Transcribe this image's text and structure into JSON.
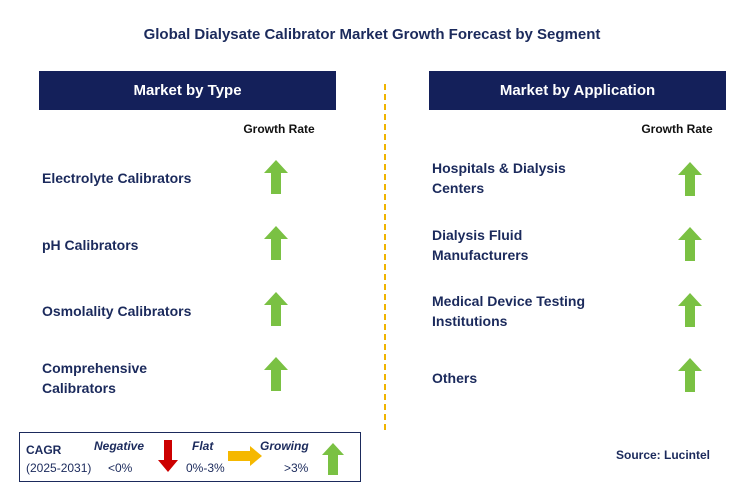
{
  "title": "Global Dialysate Calibrator Market Growth Forecast by Segment",
  "left_panel": {
    "header": "Market by Type",
    "growth_label": "Growth Rate",
    "items": [
      {
        "label": "Electrolyte Calibrators",
        "trend": "growing"
      },
      {
        "label": "pH Calibrators",
        "trend": "growing"
      },
      {
        "label": "Osmolality Calibrators",
        "trend": "growing"
      },
      {
        "label": "Comprehensive Calibrators",
        "trend": "growing"
      }
    ]
  },
  "right_panel": {
    "header": "Market by Application",
    "growth_label": "Growth Rate",
    "items": [
      {
        "label": "Hospitals & Dialysis Centers",
        "trend": "growing"
      },
      {
        "label": "Dialysis Fluid Manufacturers",
        "trend": "growing"
      },
      {
        "label": "Medical Device Testing Institutions",
        "trend": "growing"
      },
      {
        "label": "Others",
        "trend": "growing"
      }
    ]
  },
  "legend": {
    "cagr": "CAGR",
    "period": "(2025-2031)",
    "negative_label": "Negative",
    "negative_range": "<0%",
    "flat_label": "Flat",
    "flat_range": "0%-3%",
    "growing_label": "Growing",
    "growing_range": ">3%"
  },
  "source": "Source: Lucintel",
  "colors": {
    "header_bg": "#14205a",
    "text_navy": "#1b2a5c",
    "growing": "#7ac143",
    "negative": "#cc0000",
    "flat": "#f5b800",
    "divider": "#f0b400"
  }
}
